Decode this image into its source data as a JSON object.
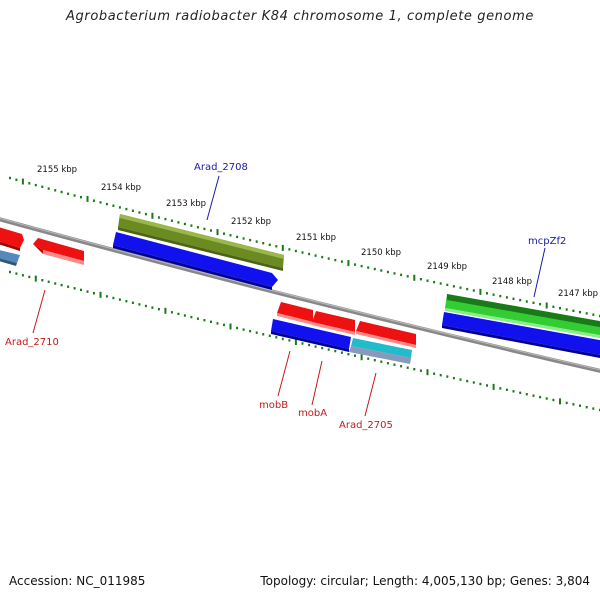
{
  "title": "Agrobacterium radiobacter K84 chromosome 1, complete genome",
  "footer": {
    "accession": "Accession: NC_011985",
    "summary": "Topology: circular; Length: 4,005,130 bp; Genes: 3,804"
  },
  "colors": {
    "backbone": "#8a8a8a",
    "tick": "#1a7a1a",
    "label_forward": "#1a1aa8",
    "label_reverse": "#c41a1a",
    "gene_red": "#ee1111",
    "gene_blue": "#1111ee",
    "gene_olive": "#6b8a22",
    "gene_green": "#33cc33",
    "gene_cyan": "#22bbcc",
    "gene_steel": "#5588bb"
  },
  "ticks": [
    "2155 kbp",
    "2154 kbp",
    "2153 kbp",
    "2152 kbp",
    "2151 kbp",
    "2150 kbp",
    "2149 kbp",
    "2148 kbp",
    "2147 kbp"
  ],
  "gene_labels": {
    "arad_2708": "Arad_2708",
    "mcpzf2": "mcpZf2",
    "arad_2710": "Arad_2710",
    "mobb": "mobB",
    "moba": "mobA",
    "arad_2705": "Arad_2705"
  }
}
